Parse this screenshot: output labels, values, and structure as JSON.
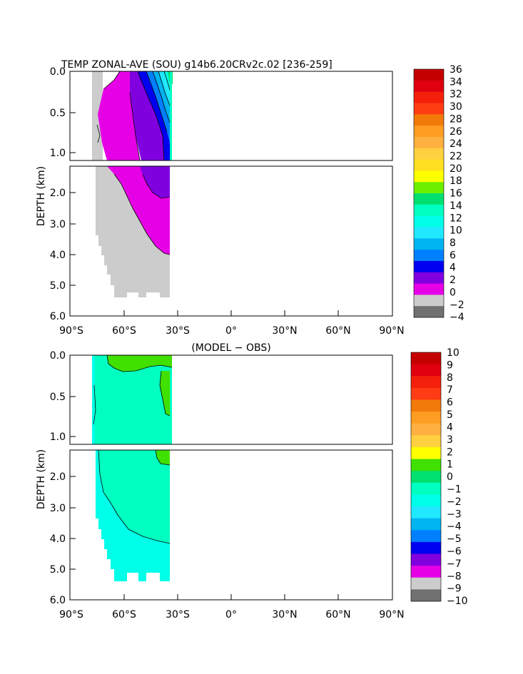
{
  "chart_data": [
    {
      "type": "contour",
      "title": "TEMP ZONAL-AVE (SOU) g14b6.20CRv2c.02 [236-259]",
      "ylabel": "DEPTH (km)",
      "xlabel": "",
      "x_range": [
        -90,
        90
      ],
      "y_range_km": [
        0,
        6
      ],
      "axis_break_km": 1.2,
      "x_ticks": [
        "90°S",
        "60°S",
        "30°S",
        "0°",
        "30°N",
        "60°N",
        "90°N"
      ],
      "y_ticks_upper": [
        "0.0",
        "0.5",
        "1.0"
      ],
      "y_ticks_lower": [
        "2.0",
        "3.0",
        "4.0",
        "5.0",
        "6.0"
      ],
      "colorbar": {
        "labels": [
          "36",
          "34",
          "32",
          "30",
          "28",
          "26",
          "24",
          "22",
          "20",
          "18",
          "16",
          "14",
          "12",
          "10",
          "8",
          "6",
          "4",
          "2",
          "0",
          "−2",
          "−4"
        ],
        "colors": [
          "#c40000",
          "#e00010",
          "#f4200c",
          "#ff3c14",
          "#f27a0a",
          "#ff9c22",
          "#ffb040",
          "#ffd040",
          "#ffe020",
          "#ffff00",
          "#6df000",
          "#00e070",
          "#00ffc0",
          "#00ffe8",
          "#20e8ff",
          "#00b4f0",
          "#0080ff",
          "#0000f0",
          "#8000e0",
          "#e600e6",
          "#cccccc",
          "#707070"
        ]
      }
    },
    {
      "type": "contour",
      "title": "(MODEL − OBS)",
      "ylabel": "DEPTH (km)",
      "xlabel": "",
      "x_range": [
        -90,
        90
      ],
      "y_range_km": [
        0,
        6
      ],
      "axis_break_km": 1.2,
      "x_ticks": [
        "90°S",
        "60°S",
        "30°S",
        "0°",
        "30°N",
        "60°N",
        "90°N"
      ],
      "y_ticks_upper": [
        "0.0",
        "0.5",
        "1.0"
      ],
      "y_ticks_lower": [
        "2.0",
        "3.0",
        "4.0",
        "5.0",
        "6.0"
      ],
      "colorbar": {
        "labels": [
          "10",
          "9",
          "8",
          "7",
          "6",
          "5",
          "4",
          "3",
          "2",
          "1",
          "0",
          "−1",
          "−2",
          "−3",
          "−4",
          "−5",
          "−6",
          "−7",
          "−8",
          "−9",
          "−10"
        ],
        "colors": [
          "#c40000",
          "#e00010",
          "#f4200c",
          "#ff3c14",
          "#f27a0a",
          "#ff9c22",
          "#ffb040",
          "#ffd040",
          "#ffff00",
          "#40e000",
          "#00e070",
          "#00ffc0",
          "#00ffe8",
          "#20e8ff",
          "#00b4f0",
          "#0080ff",
          "#0000f0",
          "#8000e0",
          "#e600e6",
          "#cccccc",
          "#707070"
        ]
      }
    }
  ]
}
